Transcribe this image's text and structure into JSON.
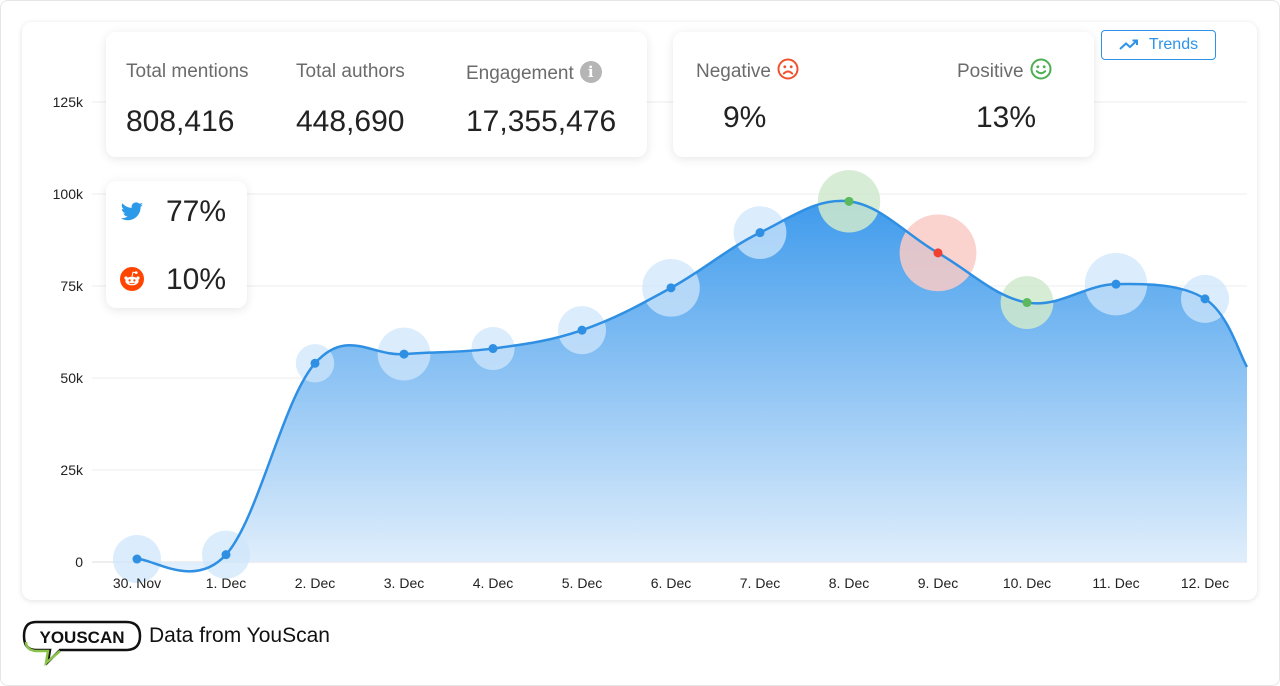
{
  "stats": {
    "total_mentions_label": "Total mentions",
    "total_mentions_value": "808,416",
    "total_authors_label": "Total authors",
    "total_authors_value": "448,690",
    "engagement_label": "Engagement",
    "engagement_value": "17,355,476",
    "info_glyph": "i"
  },
  "sentiment": {
    "negative_label": "Negative",
    "negative_value": "9%",
    "positive_label": "Positive",
    "positive_value": "13%",
    "negative_color": "#f0522f",
    "positive_color": "#4caf50"
  },
  "sources": {
    "twitter_value": "77%",
    "reddit_value": "10%",
    "twitter_icon": "twitter-icon",
    "reddit_icon": "reddit-icon"
  },
  "trends_button": {
    "label": "Trends",
    "icon": "trend-up-icon"
  },
  "footer": {
    "logo_text": "YOUSCAN",
    "text": "Data from YouScan"
  },
  "colors": {
    "line": "#2e8fe3",
    "area_top": "#3f9bec",
    "area_bottom": "#e4f0fc",
    "bubble_neutral": "#cfe6fb",
    "bubble_positive": "#cfe9cd",
    "bubble_negative": "#f9cbc5",
    "point_positive": "#5cb85c",
    "point_negative": "#f04030",
    "accent": "#2e93e6"
  },
  "chart_data": {
    "type": "area",
    "title": "",
    "xlabel": "",
    "ylabel": "",
    "categories": [
      "30. Nov",
      "1. Dec",
      "2. Dec",
      "3. Dec",
      "4. Dec",
      "5. Dec",
      "6. Dec",
      "7. Dec",
      "8. Dec",
      "9. Dec",
      "10. Dec",
      "11. Dec",
      "12. Dec"
    ],
    "values": [
      800,
      2000,
      54000,
      56500,
      58000,
      63000,
      74500,
      89500,
      98000,
      84000,
      70500,
      75500,
      71500
    ],
    "end_value": 53000,
    "sentiment": [
      "neutral",
      "neutral",
      "neutral",
      "neutral",
      "neutral",
      "neutral",
      "neutral",
      "neutral",
      "positive",
      "negative",
      "positive",
      "neutral",
      "neutral"
    ],
    "bubble_scale": [
      1.0,
      1.0,
      0.8,
      1.1,
      0.9,
      1.0,
      1.2,
      1.1,
      1.3,
      1.6,
      1.1,
      1.3,
      1.0
    ],
    "yticks": [
      0,
      25000,
      50000,
      75000,
      100000,
      125000
    ],
    "ytick_labels": [
      "0",
      "25k",
      "50k",
      "75k",
      "100k",
      "125k"
    ],
    "ylim": [
      0,
      125000
    ],
    "grid": true,
    "legend": "none"
  }
}
